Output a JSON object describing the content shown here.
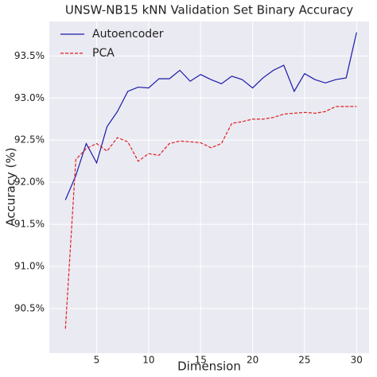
{
  "chart_data": {
    "type": "line",
    "title": "UNSW-NB15 kNN Validation Set Binary Accuracy",
    "x_label": "Dimension",
    "y_label": "Accuracy (%)",
    "x": [
      2,
      3,
      4,
      5,
      6,
      7,
      8,
      9,
      10,
      11,
      12,
      13,
      14,
      15,
      16,
      17,
      18,
      19,
      20,
      21,
      22,
      23,
      24,
      25,
      26,
      27,
      28,
      29,
      30
    ],
    "series": [
      {
        "name": "Autoencoder",
        "color": "#1a1aaa",
        "dash": "solid",
        "values": [
          91.79,
          92.08,
          92.46,
          92.23,
          92.66,
          92.84,
          93.08,
          93.13,
          93.12,
          93.23,
          93.23,
          93.33,
          93.2,
          93.28,
          93.22,
          93.17,
          93.26,
          93.22,
          93.12,
          93.24,
          93.33,
          93.39,
          93.08,
          93.29,
          93.22,
          93.18,
          93.22,
          93.24,
          93.78
        ]
      },
      {
        "name": "PCA",
        "color": "#e02020",
        "dash": "dashed",
        "values": [
          90.26,
          92.27,
          92.4,
          92.46,
          92.37,
          92.53,
          92.48,
          92.25,
          92.34,
          92.32,
          92.46,
          92.49,
          92.48,
          92.47,
          92.41,
          92.46,
          92.7,
          92.72,
          92.75,
          92.75,
          92.77,
          92.81,
          92.82,
          92.83,
          92.82,
          92.84,
          92.9,
          92.9,
          92.9
        ]
      }
    ],
    "xlim": [
      0.45,
      31.2
    ],
    "ylim": [
      89.97,
      93.91
    ],
    "xticks": [
      5,
      10,
      15,
      20,
      25,
      30
    ],
    "yticks": [
      {
        "value": 90.5,
        "label": "90.5%"
      },
      {
        "value": 91.0,
        "label": "91.0%"
      },
      {
        "value": 91.5,
        "label": "91.5%"
      },
      {
        "value": 92.0,
        "label": "92.0%"
      },
      {
        "value": 92.5,
        "label": "92.5%"
      },
      {
        "value": 93.0,
        "label": "93.0%"
      },
      {
        "value": 93.5,
        "label": "93.5%"
      }
    ],
    "grid": true,
    "legend": "upper-left"
  }
}
